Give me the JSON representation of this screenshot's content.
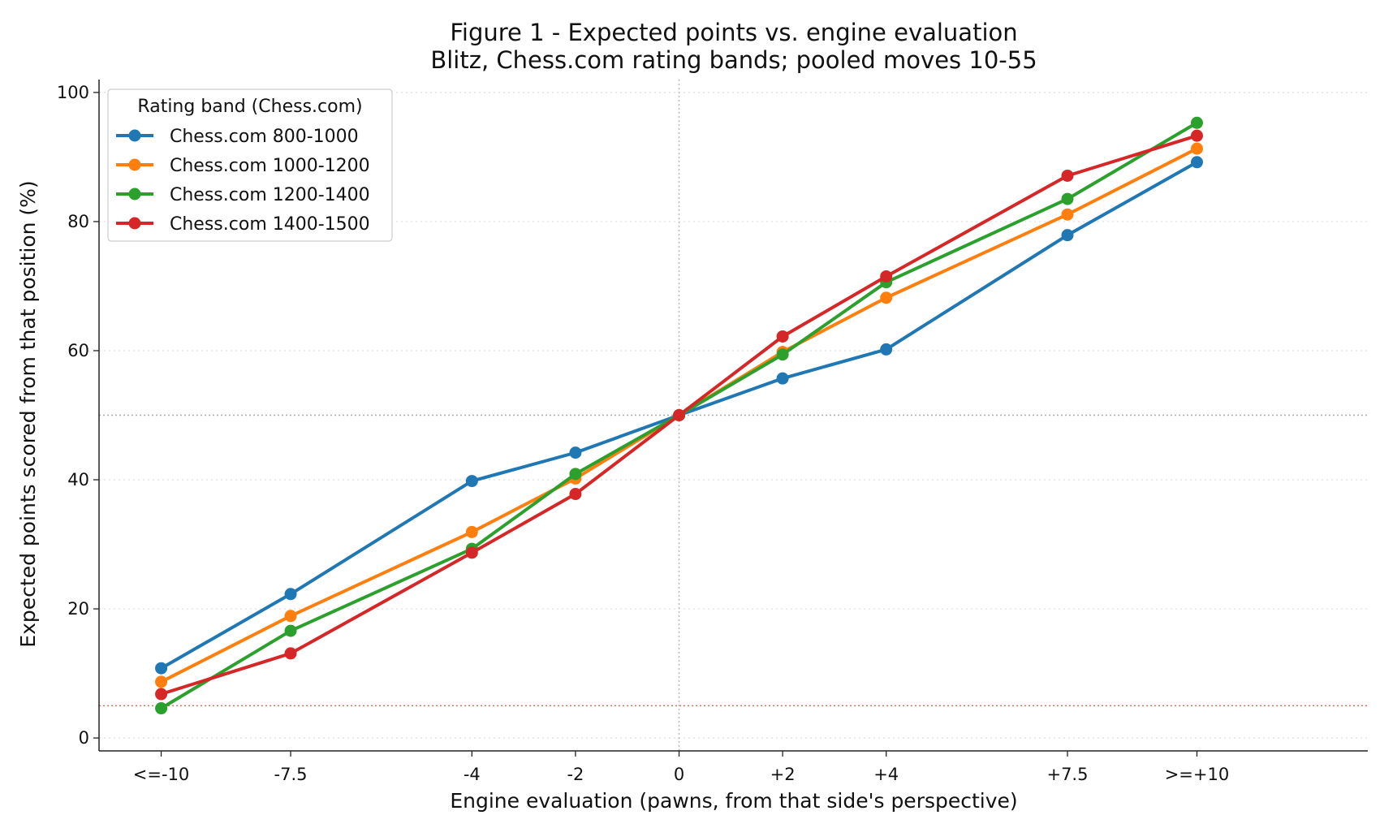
{
  "chart_data": {
    "type": "line",
    "title": "Figure 1 - Expected points vs. engine evaluation",
    "subtitle": "Blitz, Chess.com rating bands; pooled moves 10-55",
    "xlabel": "Engine evaluation (pawns, from that side's perspective)",
    "ylabel": "Expected points scored from that position (%)",
    "x": [
      -10,
      -7.5,
      -4,
      -2,
      0,
      2,
      4,
      7.5,
      10
    ],
    "x_tick_labels": [
      "<=-10",
      "-7.5",
      "-4",
      "-2",
      "0",
      "+2",
      "+4",
      "+7.5",
      ">=+10"
    ],
    "xlim": [
      -11.2,
      13.3
    ],
    "ylim": [
      -2,
      102
    ],
    "y_ticks": [
      0,
      20,
      40,
      60,
      80,
      100
    ],
    "grid": "horizontal-dotted",
    "legend": {
      "title": "Rating band (Chess.com)",
      "placement": "top-left"
    },
    "reference_lines": [
      {
        "axis": "y",
        "value": 50,
        "color": "#aaaaaa",
        "style": "dotted"
      },
      {
        "axis": "y",
        "value": 5,
        "color": "#e66565",
        "style": "dotted"
      },
      {
        "axis": "x",
        "value": 0,
        "color": "#bbbbbb",
        "style": "dotted"
      }
    ],
    "series": [
      {
        "name": "Chess.com 800-1000",
        "color": "#1f77b4",
        "values": [
          10.8,
          22.3,
          39.8,
          44.2,
          50.0,
          55.7,
          60.2,
          77.9,
          89.2
        ]
      },
      {
        "name": "Chess.com 1000-1200",
        "color": "#ff7f0e",
        "values": [
          8.7,
          18.9,
          31.9,
          40.2,
          50.0,
          59.8,
          68.2,
          81.1,
          91.3
        ]
      },
      {
        "name": "Chess.com 1200-1400",
        "color": "#2ca02c",
        "values": [
          4.6,
          16.6,
          29.3,
          40.9,
          50.0,
          59.4,
          70.6,
          83.5,
          95.3
        ]
      },
      {
        "name": "Chess.com 1400-1500",
        "color": "#d62728",
        "values": [
          6.8,
          13.1,
          28.7,
          37.8,
          50.0,
          62.2,
          71.5,
          87.1,
          93.3
        ]
      }
    ]
  }
}
